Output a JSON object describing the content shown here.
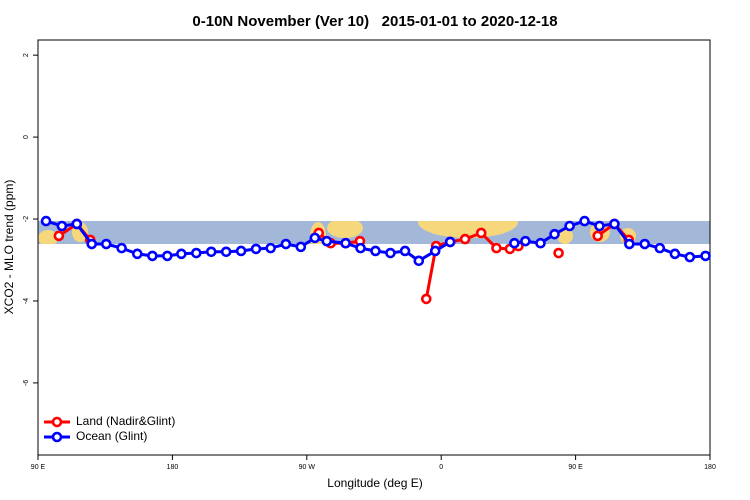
{
  "chart_data": {
    "type": "line",
    "title": "0-10N November (Ver 10)   2015-01-01 to 2020-12-18",
    "xlabel": "Longitude (deg E)",
    "ylabel": "XCO2 - MLO trend (ppm)",
    "xlim": [
      90,
      540
    ],
    "xticks": [
      {
        "value": 90,
        "label": "90 E"
      },
      {
        "value": 180,
        "label": "180"
      },
      {
        "value": 270,
        "label": "90 W"
      },
      {
        "value": 360,
        "label": "0"
      },
      {
        "value": 450,
        "label": "90 E"
      },
      {
        "value": 540,
        "label": "180"
      }
    ],
    "ylim": [
      -7.76,
      2.37
    ],
    "yticks": [
      2,
      0,
      -2,
      -4,
      -6
    ],
    "legend": "bottom-left",
    "series": [
      {
        "name": "Land (Nadir&Glint)",
        "color": "#ff0000",
        "x": [
          104,
          116,
          125,
          null,
          278,
          286,
          296,
          305.6,
          null,
          350,
          356.6,
          366,
          376,
          386.8,
          397,
          406,
          411.7,
          null,
          438.6,
          null,
          464.8,
          476,
          485.6
        ],
        "values": [
          -2.41,
          -2.12,
          -2.51,
          null,
          -2.34,
          -2.59,
          -2.59,
          -2.54,
          null,
          -3.95,
          -2.66,
          -2.56,
          -2.49,
          -2.34,
          -2.71,
          -2.73,
          -2.66,
          null,
          -2.83,
          null,
          -2.41,
          -2.12,
          -2.51
        ]
      },
      {
        "name": "Ocean (Glint)",
        "color": "#0000ff",
        "x": [
          95.4,
          106,
          116,
          126,
          135.7,
          146,
          156.5,
          166.6,
          176.6,
          186,
          196,
          206,
          216,
          226,
          236,
          245.8,
          256,
          266,
          275.4,
          283.4,
          296,
          306,
          316,
          326,
          335.8,
          345,
          356,
          366,
          null,
          409,
          416.4,
          426.5,
          435.9,
          446,
          456,
          466,
          476,
          486,
          496.3,
          506.4,
          516.5,
          526.5,
          537
        ],
        "values": [
          -2.05,
          -2.17,
          -2.12,
          -2.61,
          -2.61,
          -2.71,
          -2.85,
          -2.9,
          -2.9,
          -2.85,
          -2.83,
          -2.8,
          -2.8,
          -2.78,
          -2.73,
          -2.71,
          -2.61,
          -2.68,
          -2.46,
          -2.54,
          -2.59,
          -2.71,
          -2.78,
          -2.83,
          -2.78,
          -3.02,
          -2.78,
          -2.56,
          null,
          -2.59,
          -2.54,
          -2.59,
          -2.37,
          -2.17,
          -2.05,
          -2.17,
          -2.12,
          -2.61,
          -2.61,
          -2.71,
          -2.85,
          -2.93,
          -2.9
        ]
      }
    ]
  }
}
